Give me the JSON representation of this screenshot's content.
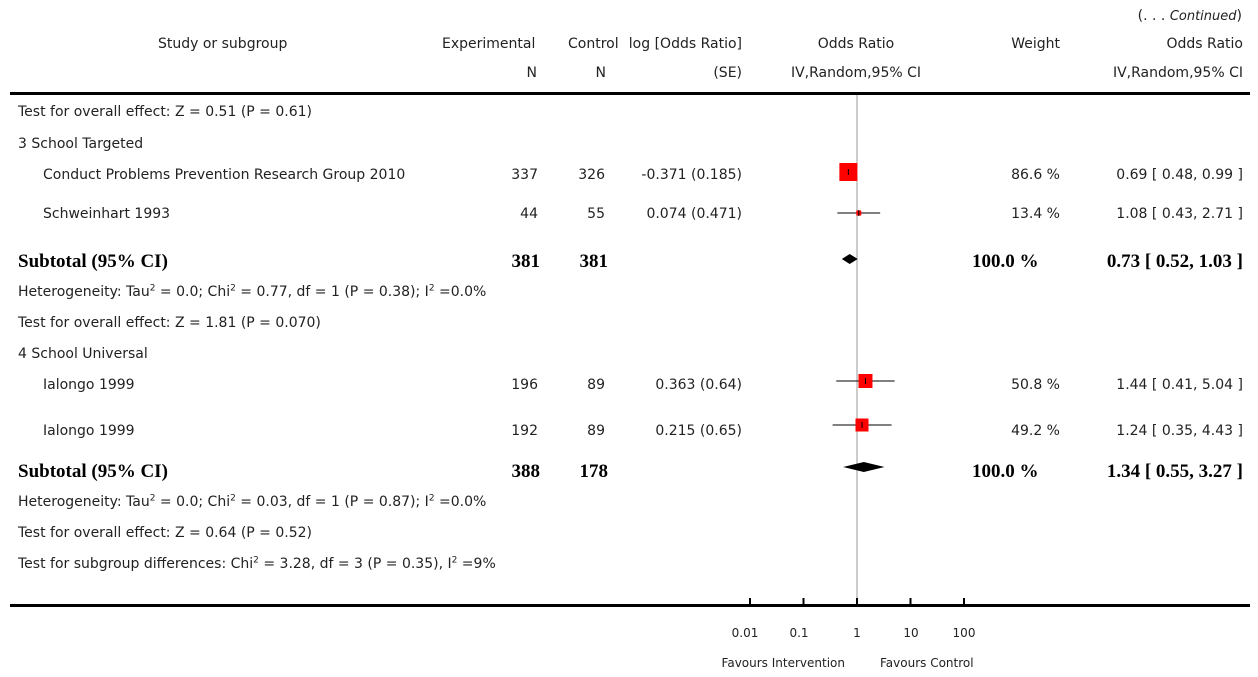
{
  "continued": "(. . . Continued)",
  "header": {
    "study": "Study or subgroup",
    "experimental": "Experimental",
    "experimental_sub": "N",
    "control": "Control",
    "control_sub": "N",
    "logor": "log [Odds Ratio]",
    "logor_sub": "(SE)",
    "or": "Odds Ratio",
    "or_sub": "IV,Random,95% CI",
    "weight": "Weight",
    "or2": "Odds Ratio",
    "or2_sub": "IV,Random,95% CI"
  },
  "texts": {
    "t1": "Test for overall effect: Z = 0.51  (P = 0.61)",
    "g3": "3 School Targeted",
    "het3_a": "Heterogeneity: Tau",
    "het3_b": " = 0.0; Chi",
    "het3_c": " = 0.77, df = 1 (P = 0.38); I",
    "het3_d": " =0.0%",
    "t3": "Test for overall effect: Z = 1.81  (P = 0.070)",
    "g4": "4 School Universal",
    "het4_a": "Heterogeneity: Tau",
    "het4_b": " = 0.0; Chi",
    "het4_c": " = 0.03, df = 1 (P = 0.87); I",
    "het4_d": " =0.0%",
    "t4": "Test for overall effect: Z = 0.64  (P = 0.52)",
    "sub_a": "Test for subgroup differences: Chi",
    "sub_b": " = 3.28, df = 3 (P = 0.35), I",
    "sub_c": " =9%",
    "sup2": "2"
  },
  "rows": [
    {
      "study": "Conduct Problems Prevention Research Group 2010",
      "exp": "337",
      "ctrl": "326",
      "logor": "-0.371 (0.185)",
      "weight": "86.6 %",
      "ci": "0.69 [ 0.48, 0.99 ]"
    },
    {
      "study": "Schweinhart 1993",
      "exp": "44",
      "ctrl": "55",
      "logor": "0.074 (0.471)",
      "weight": "13.4 %",
      "ci": "1.08 [ 0.43, 2.71 ]"
    },
    {
      "study": "Ialongo 1999",
      "exp": "196",
      "ctrl": "89",
      "logor": "0.363 (0.64)",
      "weight": "50.8 %",
      "ci": "1.44 [ 0.41, 5.04 ]"
    },
    {
      "study": "Ialongo 1999",
      "exp": "192",
      "ctrl": "89",
      "logor": "0.215 (0.65)",
      "weight": "49.2 %",
      "ci": "1.24 [ 0.35, 4.43 ]"
    }
  ],
  "subtotals": [
    {
      "label": "Subtotal (95% CI)",
      "exp": "381",
      "ctrl": "381",
      "weight": "100.0 %",
      "ci": "0.73 [ 0.52, 1.03 ]"
    },
    {
      "label": "Subtotal (95% CI)",
      "exp": "388",
      "ctrl": "178",
      "weight": "100.0 %",
      "ci": "1.34 [ 0.55, 3.27 ]"
    }
  ],
  "axis": {
    "ticks": [
      "0.01",
      "0.1",
      "1",
      "10",
      "100"
    ],
    "favours_left": "Favours Intervention",
    "favours_right": "Favours Control"
  },
  "chart_data": {
    "type": "forest",
    "scale": "log",
    "xlim": [
      0.01,
      100
    ],
    "xticks": [
      0.01,
      0.1,
      1,
      10,
      100
    ],
    "studies": [
      {
        "or": 0.69,
        "lo": 0.48,
        "hi": 0.99,
        "weight": 86.6
      },
      {
        "or": 1.08,
        "lo": 0.43,
        "hi": 2.71,
        "weight": 13.4
      },
      {
        "or": 1.44,
        "lo": 0.41,
        "hi": 5.04,
        "weight": 50.8
      },
      {
        "or": 1.24,
        "lo": 0.35,
        "hi": 4.43,
        "weight": 49.2
      }
    ],
    "subtotals": [
      {
        "or": 0.73,
        "lo": 0.52,
        "hi": 1.03
      },
      {
        "or": 1.34,
        "lo": 0.55,
        "hi": 3.27
      }
    ],
    "colors": {
      "box": "#ff0000",
      "line": "#000000",
      "null_line": "#999999"
    }
  }
}
